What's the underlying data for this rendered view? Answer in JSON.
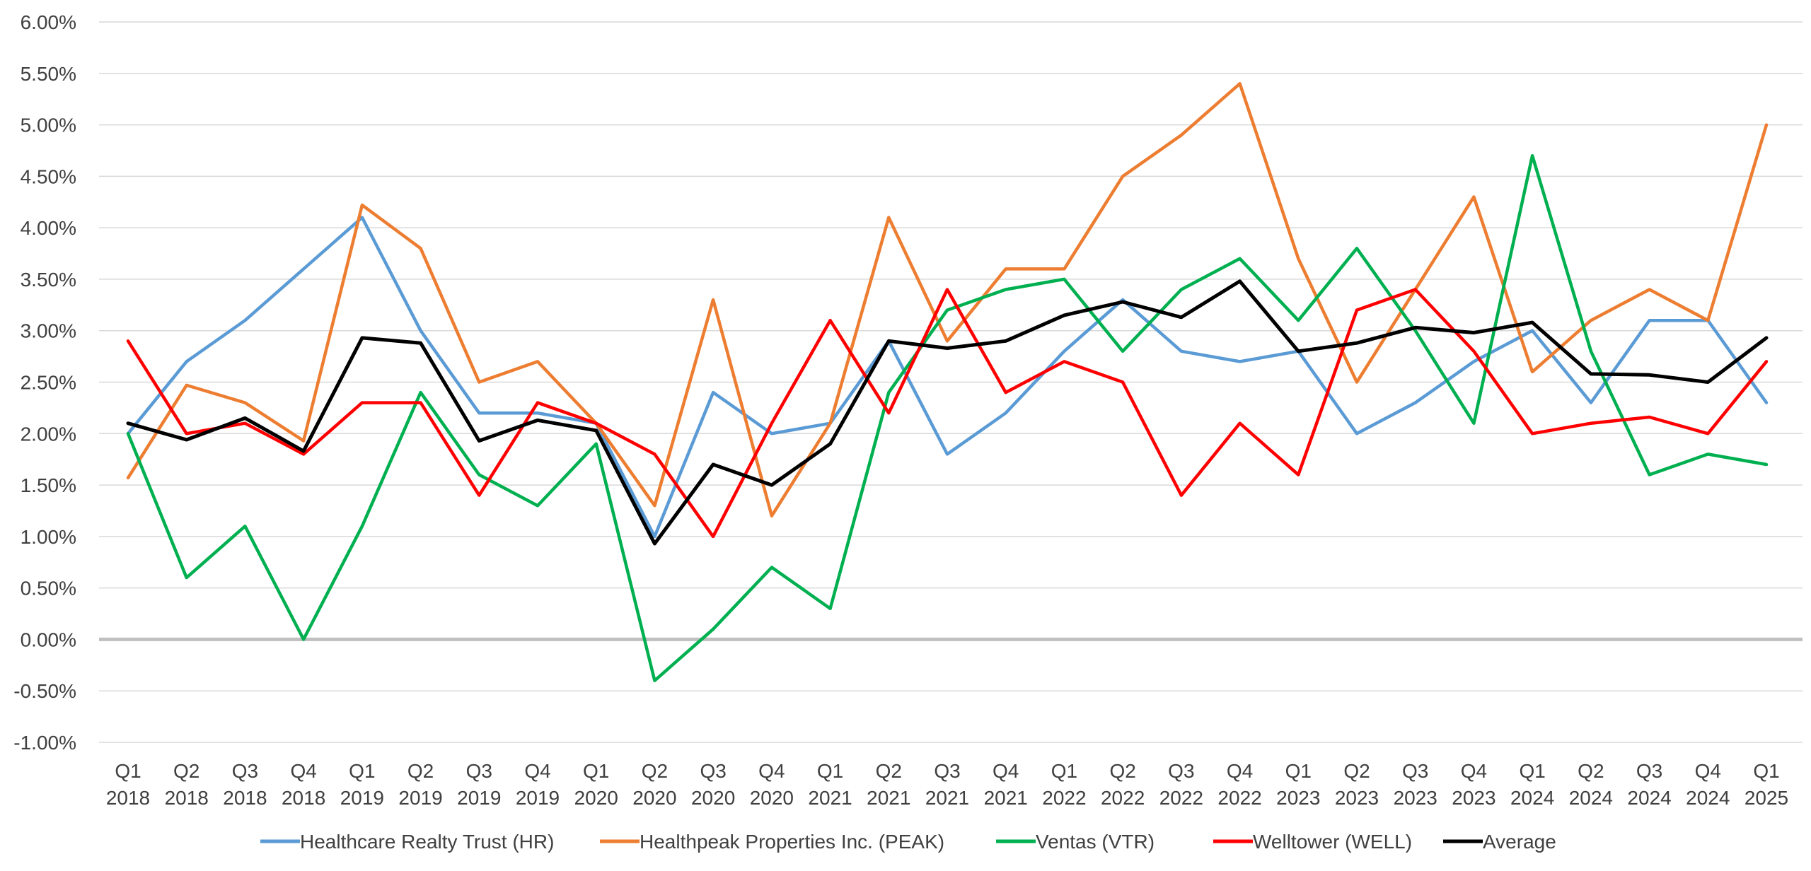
{
  "chart_data": {
    "type": "line",
    "title": "",
    "xlabel": "",
    "ylabel": "",
    "ylim": [
      -0.01,
      0.06
    ],
    "ytick_step": 0.005,
    "y_format": "percent_2dp",
    "grid": "horizontal",
    "legend_position": "bottom",
    "categories": [
      {
        "q": "Q1",
        "y": "2018"
      },
      {
        "q": "Q2",
        "y": "2018"
      },
      {
        "q": "Q3",
        "y": "2018"
      },
      {
        "q": "Q4",
        "y": "2018"
      },
      {
        "q": "Q1",
        "y": "2019"
      },
      {
        "q": "Q2",
        "y": "2019"
      },
      {
        "q": "Q3",
        "y": "2019"
      },
      {
        "q": "Q4",
        "y": "2019"
      },
      {
        "q": "Q1",
        "y": "2020"
      },
      {
        "q": "Q2",
        "y": "2020"
      },
      {
        "q": "Q3",
        "y": "2020"
      },
      {
        "q": "Q4",
        "y": "2020"
      },
      {
        "q": "Q1",
        "y": "2021"
      },
      {
        "q": "Q2",
        "y": "2021"
      },
      {
        "q": "Q3",
        "y": "2021"
      },
      {
        "q": "Q4",
        "y": "2021"
      },
      {
        "q": "Q1",
        "y": "2022"
      },
      {
        "q": "Q2",
        "y": "2022"
      },
      {
        "q": "Q3",
        "y": "2022"
      },
      {
        "q": "Q4",
        "y": "2022"
      },
      {
        "q": "Q1",
        "y": "2023"
      },
      {
        "q": "Q2",
        "y": "2023"
      },
      {
        "q": "Q3",
        "y": "2023"
      },
      {
        "q": "Q4",
        "y": "2023"
      },
      {
        "q": "Q1",
        "y": "2024"
      },
      {
        "q": "Q2",
        "y": "2024"
      },
      {
        "q": "Q3",
        "y": "2024"
      },
      {
        "q": "Q4",
        "y": "2024"
      },
      {
        "q": "Q1",
        "y": "2025"
      }
    ],
    "series": [
      {
        "name": "Healthcare Realty Trust (HR)",
        "color": "#5b9bd5",
        "values": [
          0.02,
          0.027,
          0.031,
          0.036,
          0.041,
          0.03,
          0.022,
          0.022,
          0.021,
          0.01,
          0.024,
          0.02,
          0.021,
          0.029,
          0.018,
          0.022,
          0.028,
          0.033,
          0.028,
          0.027,
          0.028,
          0.02,
          0.023,
          0.027,
          0.03,
          0.023,
          0.031,
          0.031,
          0.023
        ]
      },
      {
        "name": "Healthpeak Properties Inc. (PEAK)",
        "color": "#ed7d31",
        "values": [
          0.0157,
          0.0247,
          0.023,
          0.0193,
          0.0422,
          0.038,
          0.025,
          0.027,
          0.021,
          0.013,
          0.033,
          0.012,
          0.021,
          0.041,
          0.029,
          0.036,
          0.036,
          0.045,
          0.049,
          0.054,
          0.037,
          0.025,
          0.034,
          0.043,
          0.026,
          0.031,
          0.034,
          0.031,
          0.05
        ]
      },
      {
        "name": "Ventas (VTR)",
        "color": "#00b050",
        "values": [
          0.02,
          0.006,
          0.011,
          0.0,
          0.011,
          0.024,
          0.016,
          0.013,
          0.019,
          -0.004,
          0.001,
          0.007,
          0.003,
          0.024,
          0.032,
          0.034,
          0.035,
          0.028,
          0.034,
          0.037,
          0.031,
          0.038,
          0.03,
          0.021,
          0.047,
          0.028,
          0.016,
          0.018,
          0.017
        ]
      },
      {
        "name": "Welltower (WELL)",
        "color": "#ff0000",
        "values": [
          0.029,
          0.02,
          0.021,
          0.018,
          0.023,
          0.023,
          0.014,
          0.023,
          0.021,
          0.018,
          0.01,
          0.021,
          0.031,
          0.022,
          0.034,
          0.024,
          0.027,
          0.025,
          0.014,
          0.021,
          0.016,
          0.032,
          0.034,
          0.028,
          0.02,
          0.021,
          0.0216,
          0.02,
          0.027
        ]
      },
      {
        "name": "Average",
        "color": "#000000",
        "values": [
          0.021,
          0.0194,
          0.0215,
          0.0183,
          0.0293,
          0.0288,
          0.0193,
          0.0213,
          0.0203,
          0.0093,
          0.017,
          0.015,
          0.019,
          0.029,
          0.0283,
          0.029,
          0.0315,
          0.0328,
          0.0313,
          0.0348,
          0.028,
          0.0288,
          0.0303,
          0.0298,
          0.0308,
          0.0258,
          0.0257,
          0.025,
          0.0293
        ]
      }
    ]
  }
}
